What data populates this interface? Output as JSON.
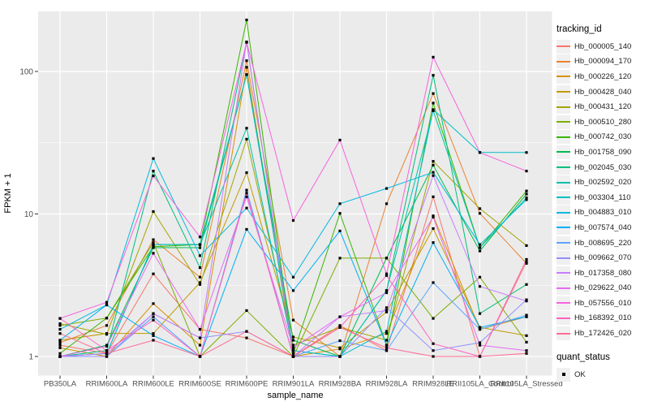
{
  "chart_data": {
    "type": "line",
    "title": "",
    "xlabel": "sample_name",
    "ylabel": "FPKM + 1",
    "y_scale": "log10",
    "y_ticks": [
      1,
      10,
      100
    ],
    "y_minor_gridlines": [
      3.162,
      31.62
    ],
    "ylim_px_note": "log scale, decade height ~175px",
    "grid": "white on grey panel (ggplot2 style)",
    "legend_position": "right",
    "panel_bg": "#EBEBEB",
    "gridline_color": "#FFFFFF",
    "tick_color": "#333333",
    "axis_text_color": "#4D4D4D",
    "point_marker": "black square",
    "categories": [
      "PB350LA",
      "RRIM600LA",
      "RRIM600LE",
      "RRIM600SE",
      "RRIM600PE",
      "RRIM901LA",
      "RRIM928BA",
      "RRIM928LA",
      "RRIM928LE",
      "RRII105LA_Control",
      "RRII105LA_Stressed"
    ],
    "series": [
      {
        "name": "Hb_000005_140",
        "color": "#F8766D",
        "values": [
          1.2,
          1.05,
          3.8,
          1.55,
          1.35,
          1.0,
          1.65,
          1.1,
          13.2,
          1.0,
          4.6
        ]
      },
      {
        "name": "Hb_000094_170",
        "color": "#EA8331",
        "values": [
          1.25,
          1.65,
          6.6,
          3.6,
          119,
          1.8,
          1.0,
          11.8,
          70,
          10.1,
          4.5
        ]
      },
      {
        "name": "Hb_000226_120",
        "color": "#D89000",
        "values": [
          1.15,
          1.0,
          2.35,
          1.2,
          107,
          1.0,
          1.13,
          1.45,
          9.7,
          1.55,
          1.9
        ]
      },
      {
        "name": "Hb_000428_040",
        "color": "#C09B00",
        "values": [
          1.3,
          1.45,
          1.45,
          3.3,
          19.5,
          1.37,
          1.15,
          2.05,
          7.9,
          1.6,
          1.4
        ]
      },
      {
        "name": "Hb_000431_120",
        "color": "#A3A500",
        "values": [
          1.7,
          1.43,
          10.4,
          3.2,
          33.5,
          1.2,
          1.6,
          1.3,
          23.4,
          10.9,
          6.0
        ]
      },
      {
        "name": "Hb_000510_280",
        "color": "#7CAE00",
        "values": [
          1.65,
          1.86,
          6.3,
          1.0,
          2.1,
          1.0,
          4.9,
          4.9,
          1.85,
          3.6,
          1.26
        ]
      },
      {
        "name": "Hb_000742_030",
        "color": "#39B600",
        "values": [
          1.05,
          1.86,
          5.9,
          6.1,
          230,
          1.05,
          10.1,
          1.2,
          60,
          5.8,
          14.5
        ]
      },
      {
        "name": "Hb_001758_090",
        "color": "#00BB4E",
        "values": [
          1.0,
          1.2,
          5.8,
          5.8,
          95,
          1.3,
          1.0,
          4.9,
          22,
          5.5,
          13.8
        ]
      },
      {
        "name": "Hb_002045_030",
        "color": "#00BF7C",
        "values": [
          1.0,
          1.1,
          20,
          4.2,
          161,
          1.0,
          1.0,
          2.9,
          94,
          2.0,
          3.2
        ]
      },
      {
        "name": "Hb_002592_020",
        "color": "#00C1A9",
        "values": [
          1.0,
          1.05,
          6.1,
          6.1,
          40,
          1.1,
          1.0,
          2.9,
          53,
          5.8,
          13.0
        ]
      },
      {
        "name": "Hb_003304_110",
        "color": "#00BFC4",
        "values": [
          1.0,
          1.05,
          6.1,
          6.1,
          95,
          1.1,
          1.0,
          1.5,
          54,
          27,
          27
        ]
      },
      {
        "name": "Hb_004883_010",
        "color": "#00BADE",
        "values": [
          1.55,
          2.3,
          24.5,
          5.1,
          11,
          3.6,
          11.8,
          15.1,
          19.6,
          6.1,
          12.6
        ]
      },
      {
        "name": "Hb_007574_040",
        "color": "#00B0F6",
        "values": [
          1.3,
          2.3,
          1.4,
          1.0,
          7.8,
          2.9,
          7.6,
          1.2,
          6.3,
          1.6,
          1.9
        ]
      },
      {
        "name": "Hb_008695_220",
        "color": "#5BA3FF",
        "values": [
          1.0,
          1.0,
          1.9,
          1.0,
          14.7,
          1.0,
          1.29,
          1.1,
          3.3,
          1.55,
          1.95
        ]
      },
      {
        "name": "Hb_009662_070",
        "color": "#9590FF",
        "values": [
          1.0,
          1.0,
          2.0,
          1.35,
          1.5,
          1.0,
          1.0,
          2.2,
          1.1,
          1.25,
          2.5
        ]
      },
      {
        "name": "Hb_017358_080",
        "color": "#C77CFF",
        "values": [
          1.0,
          1.05,
          2.0,
          1.35,
          161,
          1.0,
          1.9,
          2.1,
          18.6,
          3.1,
          2.45
        ]
      },
      {
        "name": "Hb_029622_040",
        "color": "#E76BF3",
        "values": [
          1.0,
          1.18,
          5.3,
          1.55,
          13.2,
          1.15,
          1.9,
          2.8,
          9.5,
          1.2,
          1.1
        ]
      },
      {
        "name": "Hb_057556_010",
        "color": "#F763DF",
        "values": [
          1.85,
          2.4,
          18.5,
          6.9,
          160,
          9.0,
          33,
          3.8,
          126,
          27,
          20
        ]
      },
      {
        "name": "Hb_168392_010",
        "color": "#FF62BC",
        "values": [
          1.85,
          1.1,
          1.8,
          1.0,
          14.0,
          1.0,
          1.6,
          3.7,
          1.23,
          1.0,
          4.8
        ]
      },
      {
        "name": "Hb_172426_020",
        "color": "#FF6B94",
        "values": [
          1.45,
          1.05,
          1.3,
          1.0,
          1.5,
          1.0,
          1.6,
          1.15,
          1.0,
          1.0,
          1.05
        ]
      }
    ],
    "legend": {
      "tracking_title": "tracking_id",
      "quant_title": "quant_status",
      "quant_items": [
        {
          "label": "OK",
          "marker": "black-square"
        }
      ]
    }
  },
  "axes": {
    "x_title": "sample_name",
    "y_title": "FPKM + 1",
    "y_tick_labels": [
      "1",
      "10",
      "100"
    ]
  }
}
